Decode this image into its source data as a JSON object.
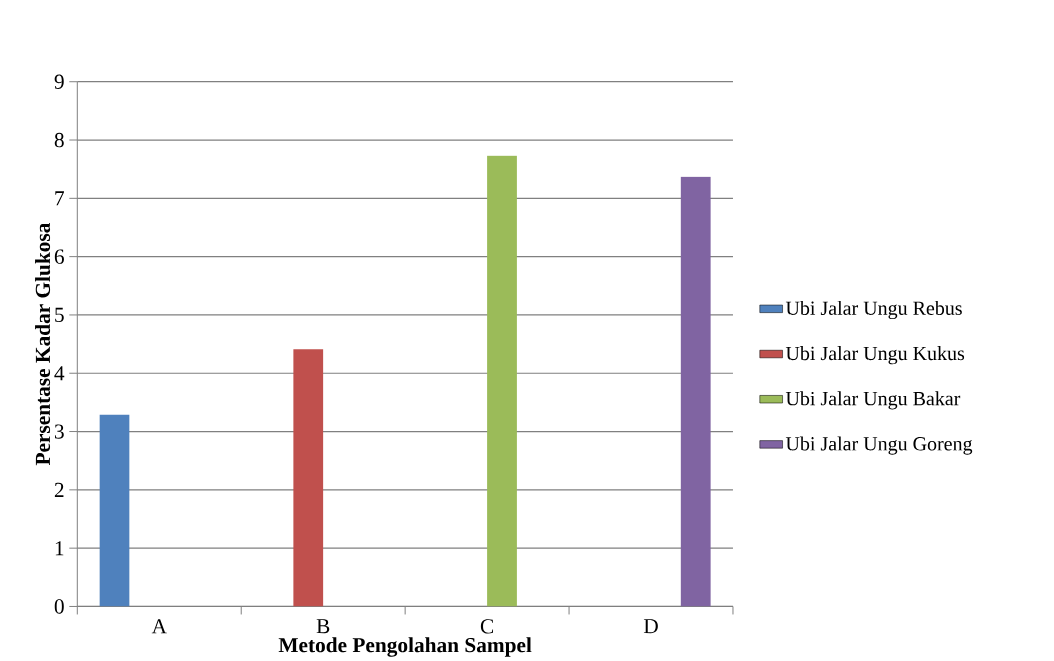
{
  "chart_data": {
    "type": "bar",
    "xlabel": "Metode Pengolahan Sampel",
    "ylabel": "Persentase Kadar Glukosa",
    "categories": [
      "A",
      "B",
      "C",
      "D"
    ],
    "series": [
      {
        "name": "Ubi Jalar Ungu Rebus",
        "color": "#4f81bd",
        "values": [
          3.29,
          null,
          null,
          null
        ]
      },
      {
        "name": "Ubi Jalar Ungu Kukus",
        "color": "#c0504d",
        "values": [
          null,
          4.41,
          null,
          null
        ]
      },
      {
        "name": "Ubi Jalar Ungu Bakar",
        "color": "#9bbb59",
        "values": [
          null,
          null,
          7.73,
          null
        ]
      },
      {
        "name": "Ubi Jalar Ungu Goreng",
        "color": "#8064a2",
        "values": [
          null,
          null,
          null,
          7.37
        ]
      }
    ],
    "ylim": [
      0,
      9
    ],
    "yticks": [
      0,
      1,
      2,
      3,
      4,
      5,
      6,
      7,
      8,
      9
    ],
    "grid": "y",
    "legend": "right"
  }
}
